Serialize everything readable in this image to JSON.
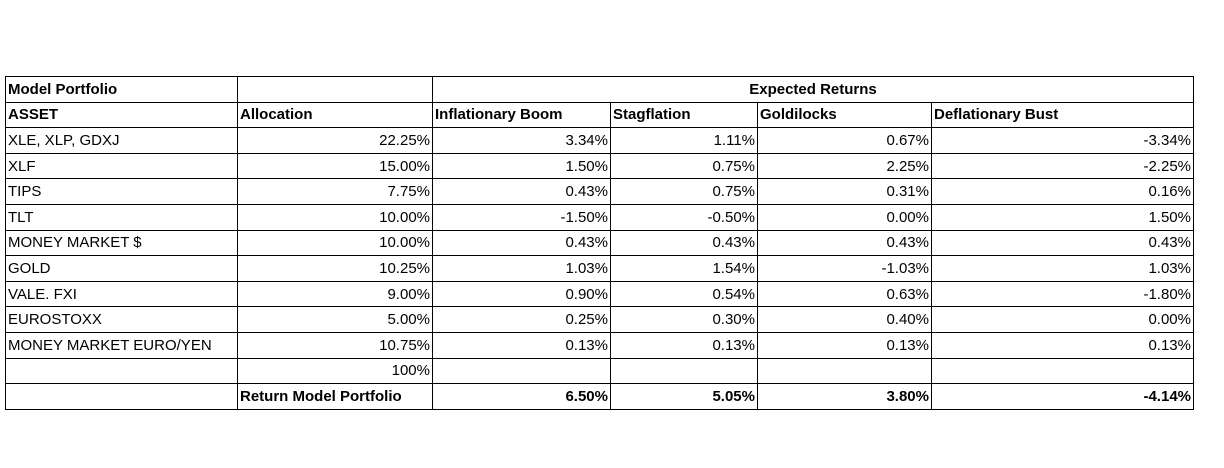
{
  "header": {
    "title": "Model Portfolio",
    "group": "Expected Returns"
  },
  "table": {
    "columns": [
      "ASSET",
      "Allocation",
      "Inflationary Boom",
      "Stagflation",
      "Goldilocks",
      "Deflationary Bust"
    ],
    "rows": [
      [
        "XLE, XLP, GDXJ",
        "22.25%",
        "3.34%",
        "1.11%",
        "0.67%",
        "-3.34%"
      ],
      [
        "XLF",
        "15.00%",
        "1.50%",
        "0.75%",
        "2.25%",
        "-2.25%"
      ],
      [
        "TIPS",
        "7.75%",
        "0.43%",
        "0.75%",
        "0.31%",
        "0.16%"
      ],
      [
        "TLT",
        "10.00%",
        "-1.50%",
        "-0.50%",
        "0.00%",
        "1.50%"
      ],
      [
        "MONEY MARKET $",
        "10.00%",
        "0.43%",
        "0.43%",
        "0.43%",
        "0.43%"
      ],
      [
        "GOLD",
        "10.25%",
        "1.03%",
        "1.54%",
        "-1.03%",
        "1.03%"
      ],
      [
        "VALE. FXI",
        "9.00%",
        "0.90%",
        "0.54%",
        "0.63%",
        "-1.80%"
      ],
      [
        "EUROSTOXX",
        "5.00%",
        "0.25%",
        "0.30%",
        "0.40%",
        "0.00%"
      ],
      [
        "MONEY MARKET EURO/YEN",
        "10.75%",
        "0.13%",
        "0.13%",
        "0.13%",
        "0.13%"
      ]
    ],
    "allocation_total": "100%",
    "summary": {
      "label": "Return Model Portfolio",
      "values": [
        "6.50%",
        "5.05%",
        "3.80%",
        "-4.14%"
      ]
    }
  }
}
